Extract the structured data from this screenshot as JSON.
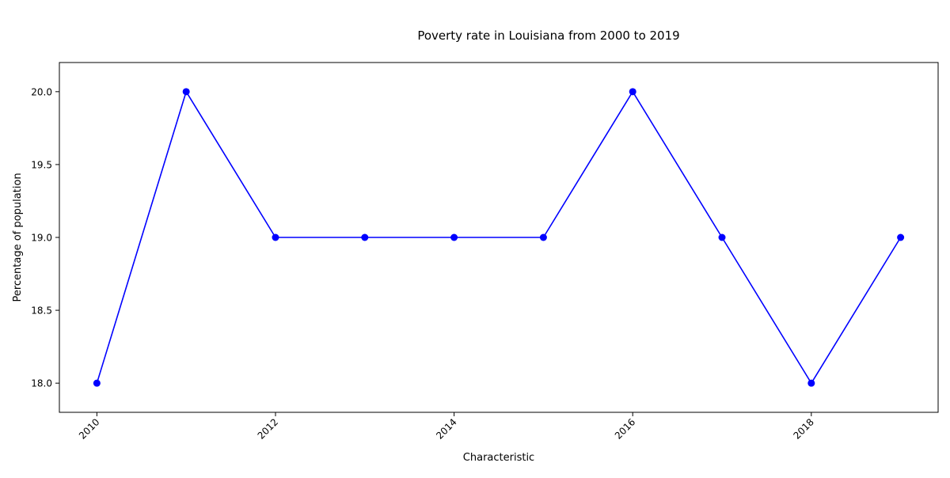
{
  "chart_data": {
    "type": "line",
    "title": "Poverty rate in Louisiana from 2000 to 2019",
    "xlabel": "Characteristic",
    "ylabel": "Percentage of population",
    "x": [
      2010,
      2011,
      2012,
      2013,
      2014,
      2015,
      2016,
      2017,
      2018,
      2019
    ],
    "series": [
      {
        "values": [
          18,
          20,
          19,
          19,
          19,
          19,
          20,
          19,
          18,
          19
        ],
        "color": "#0000ff",
        "marker": "circle"
      }
    ],
    "xticks": [
      "2010",
      "2012",
      "2014",
      "2016",
      "2018"
    ],
    "yticks": [
      "18.0",
      "18.5",
      "19.0",
      "19.5",
      "20.0"
    ],
    "xlim": [
      2009.58,
      2019.42
    ],
    "ylim": [
      17.8,
      20.2
    ],
    "grid": false,
    "legend": "none"
  }
}
